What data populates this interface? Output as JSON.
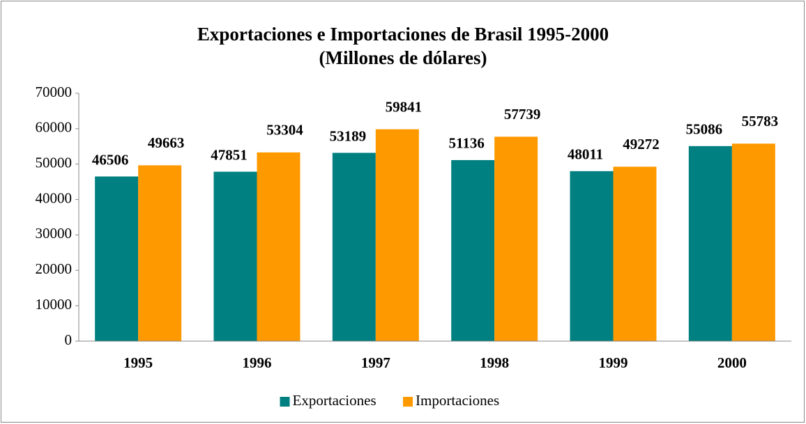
{
  "chart_data": {
    "type": "bar",
    "title": "Exportaciones e Importaciones de Brasil 1995-2000",
    "subtitle": "(Millones de dólares)",
    "categories": [
      "1995",
      "1996",
      "1997",
      "1998",
      "1999",
      "2000"
    ],
    "series": [
      {
        "name": "Exportaciones",
        "color": "#008080",
        "values": [
          46506,
          47851,
          53189,
          51136,
          48011,
          55086
        ]
      },
      {
        "name": "Importaciones",
        "color": "#ff9900",
        "values": [
          49663,
          53304,
          59841,
          57739,
          49272,
          55783
        ]
      }
    ],
    "ylim": [
      0,
      70000
    ],
    "yticks": [
      0,
      10000,
      20000,
      30000,
      40000,
      50000,
      60000,
      70000
    ],
    "grid": false,
    "legend": "bottom"
  }
}
